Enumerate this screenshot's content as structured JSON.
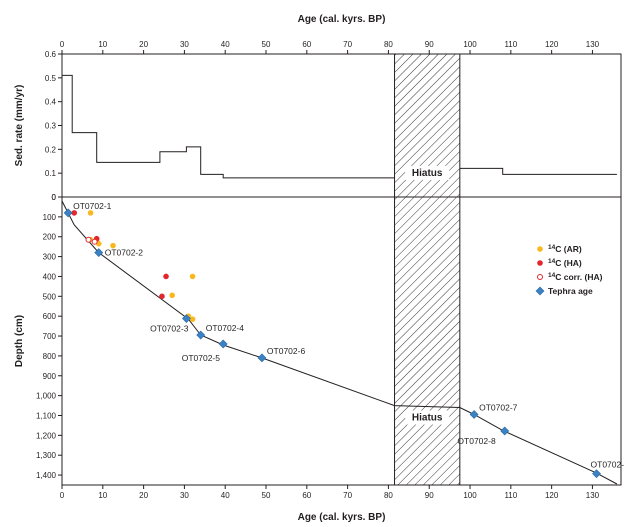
{
  "chart_data": {
    "type": "scatter",
    "x_axis": {
      "label": "Age (cal. kyrs. BP)",
      "range": [
        0,
        137
      ],
      "ticks": [
        0,
        10,
        20,
        30,
        40,
        50,
        60,
        70,
        80,
        90,
        100,
        110,
        120,
        130
      ]
    },
    "top_panel": {
      "ylabel": "Sed. rate (mm/yr)",
      "ylim": [
        0,
        0.6
      ],
      "yticks": [
        {
          "v": 0.6,
          "label": "0.6"
        },
        {
          "v": 0.5,
          "label": "0.5"
        },
        {
          "v": 0.4,
          "label": "0.4"
        },
        {
          "v": 0.3,
          "label": "0.3"
        },
        {
          "v": 0.2,
          "label": "0.2"
        },
        {
          "v": 0.1,
          "label": "0.1"
        },
        {
          "v": 0,
          "label": "0"
        }
      ],
      "rate_steps": [
        [
          [
            0,
            0.51
          ],
          [
            2.5,
            0.51
          ],
          [
            2.5,
            0.27
          ],
          [
            8.5,
            0.27
          ],
          [
            8.5,
            0.145
          ],
          [
            24,
            0.145
          ],
          [
            24,
            0.19
          ],
          [
            30.5,
            0.19
          ],
          [
            30.5,
            0.21
          ],
          [
            34,
            0.21
          ],
          [
            34,
            0.095
          ],
          [
            39.5,
            0.095
          ],
          [
            39.5,
            0.08
          ],
          [
            81.5,
            0.08
          ]
        ],
        [
          [
            97.5,
            0.12
          ],
          [
            108,
            0.12
          ],
          [
            108,
            0.095
          ],
          [
            136,
            0.095
          ]
        ]
      ]
    },
    "bottom_panel": {
      "ylabel": "Depth (cm)",
      "ylim": [
        0,
        1450
      ],
      "yticks": [
        {
          "v": 0,
          "label": "0"
        },
        {
          "v": 100,
          "label": "100"
        },
        {
          "v": 200,
          "label": "200"
        },
        {
          "v": 300,
          "label": "300"
        },
        {
          "v": 400,
          "label": "400"
        },
        {
          "v": 500,
          "label": "500"
        },
        {
          "v": 600,
          "label": "600"
        },
        {
          "v": 700,
          "label": "700"
        },
        {
          "v": 800,
          "label": "800"
        },
        {
          "v": 900,
          "label": "900"
        },
        {
          "v": 1000,
          "label": "1,000"
        },
        {
          "v": 1100,
          "label": "1,100"
        },
        {
          "v": 1200,
          "label": "1,200"
        },
        {
          "v": 1300,
          "label": "1,300"
        },
        {
          "v": 1400,
          "label": "1,400"
        }
      ],
      "age_depth_model": [
        [
          0,
          20
        ],
        [
          1.5,
          80
        ],
        [
          3,
          140
        ],
        [
          9,
          280
        ],
        [
          31,
          615
        ],
        [
          34,
          695
        ],
        [
          39.5,
          745
        ],
        [
          49,
          810
        ],
        [
          81.5,
          1050
        ],
        [
          97.5,
          1060
        ],
        [
          101,
          1095
        ],
        [
          108,
          1175
        ],
        [
          131,
          1390
        ],
        [
          136,
          1445
        ]
      ],
      "series": [
        {
          "name": "14C (AR)",
          "color": "#f9b81f",
          "marker": "dot",
          "points": [
            [
              7,
              80
            ],
            [
              7,
              215
            ],
            [
              8.5,
              215
            ],
            [
              9,
              235
            ],
            [
              12.5,
              245
            ],
            [
              32,
              400
            ],
            [
              27,
              495
            ],
            [
              32,
              615
            ],
            [
              31,
              600
            ]
          ]
        },
        {
          "name": "14C (HA)",
          "color": "#e3262d",
          "marker": "dot",
          "points": [
            [
              3,
              80
            ],
            [
              8.5,
              210
            ],
            [
              25.5,
              400
            ],
            [
              24.5,
              500
            ]
          ]
        },
        {
          "name": "14C corr. (HA)",
          "color": "#e3262d",
          "marker": "ring",
          "points": [
            [
              6.5,
              215
            ],
            [
              8,
              225
            ]
          ]
        },
        {
          "name": "Tephra age",
          "color": "#3b82c4",
          "marker": "diamond",
          "points": [
            [
              1.5,
              80
            ],
            [
              9,
              280
            ],
            [
              30.5,
              612
            ],
            [
              34,
              695
            ],
            [
              39.5,
              740
            ],
            [
              49,
              810
            ],
            [
              101,
              1095
            ],
            [
              108.5,
              1178
            ],
            [
              131,
              1393
            ]
          ]
        }
      ],
      "tephra_labels": [
        {
          "text": "OT0702-1",
          "x": 1.5,
          "y": 80,
          "pos": "right-up"
        },
        {
          "text": "OT0702-2",
          "x": 9,
          "y": 280,
          "pos": "right"
        },
        {
          "text": "OT0702-3",
          "x": 30.5,
          "y": 612,
          "pos": "left"
        },
        {
          "text": "OT0702-4",
          "x": 34,
          "y": 695,
          "pos": "right-up"
        },
        {
          "text": "OT0702-5",
          "x": 34,
          "y": 695,
          "pos": "below"
        },
        {
          "text": "OT0702-6",
          "x": 49,
          "y": 810,
          "pos": "right-up"
        },
        {
          "text": "OT0702-7",
          "x": 101,
          "y": 1095,
          "pos": "right-up"
        },
        {
          "text": "OT0702-8",
          "x": 108.5,
          "y": 1178,
          "pos": "left-down"
        },
        {
          "text": "OT0702-",
          "x": 131,
          "y": 1393,
          "pos": "up"
        }
      ]
    },
    "hiatus": {
      "label": "Hiatus",
      "x_start": 81.5,
      "x_end": 97.5
    },
    "legend": {
      "placement": "right",
      "items": [
        {
          "sup": "14",
          "rest": "C (AR)"
        },
        {
          "sup": "14",
          "rest": "C (HA)"
        },
        {
          "sup": "14",
          "rest": "C corr. (HA)"
        },
        {
          "sup": "",
          "rest": "Tephra age"
        }
      ]
    }
  }
}
